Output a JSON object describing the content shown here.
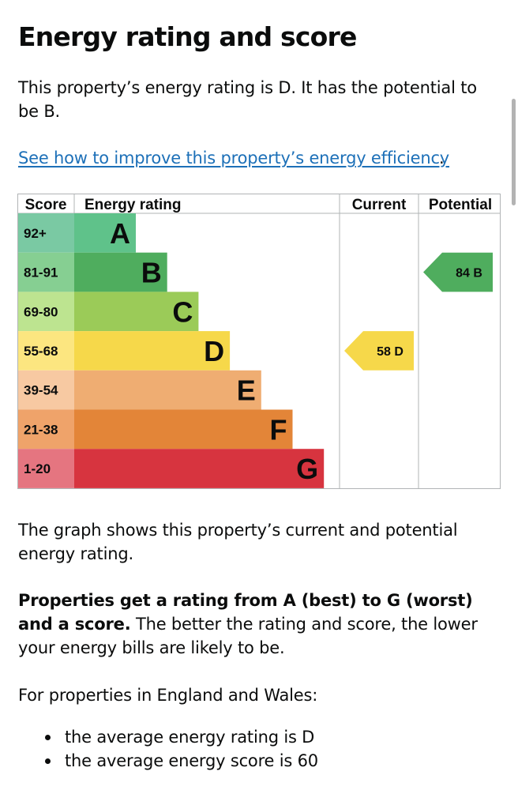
{
  "page": {
    "title": "Energy rating and score",
    "intro": "This property’s energy rating is D. It has the potential to be B.",
    "improve_link": "See how to improve this property’s energy efficiency",
    "link_suffix": ".",
    "graph_desc": "The graph shows this property’s current and potential energy rating.",
    "ratings_bold": "Properties get a rating from A (best) to G (worst) and a score.",
    "ratings_rest": " The better the rating and score, the lower your energy bills are likely to be.",
    "region": "For properties in England and Wales:",
    "bullets": [
      "the average energy rating is D",
      "the average energy score is 60"
    ]
  },
  "chart_data": {
    "type": "table",
    "headers": {
      "score": "Score",
      "rating": "Energy rating",
      "current": "Current",
      "potential": "Potential"
    },
    "bands": [
      {
        "letter": "A",
        "range": "92+",
        "color": "#008054",
        "light": "#7ac9a3"
      },
      {
        "letter": "B",
        "range": "81-91",
        "color": "#19b459",
        "light": "#86cf92"
      },
      {
        "letter": "C",
        "range": "69-80",
        "color": "#8dce46",
        "light": "#bde490"
      },
      {
        "letter": "D",
        "range": "55-68",
        "color": "#ffd500",
        "light": "#fce680"
      },
      {
        "letter": "E",
        "range": "39-54",
        "color": "#fcaa65",
        "light": "#f7c9a2"
      },
      {
        "letter": "F",
        "range": "21-38",
        "color": "#ef8023",
        "light": "#efa36a"
      },
      {
        "letter": "G",
        "range": "1-20",
        "color": "#e9153b",
        "light": "#e57580"
      }
    ],
    "band_fills": [
      "#5fc28a",
      "#4fad5e",
      "#9bcb58",
      "#f6d84a",
      "#efad72",
      "#e38538",
      "#d7343f"
    ],
    "current": {
      "score": 58,
      "rating": "D",
      "label": "58  D",
      "color": "#f6d84a"
    },
    "potential": {
      "score": 84,
      "rating": "B",
      "label": "84  B",
      "color": "#4fad5e"
    }
  }
}
